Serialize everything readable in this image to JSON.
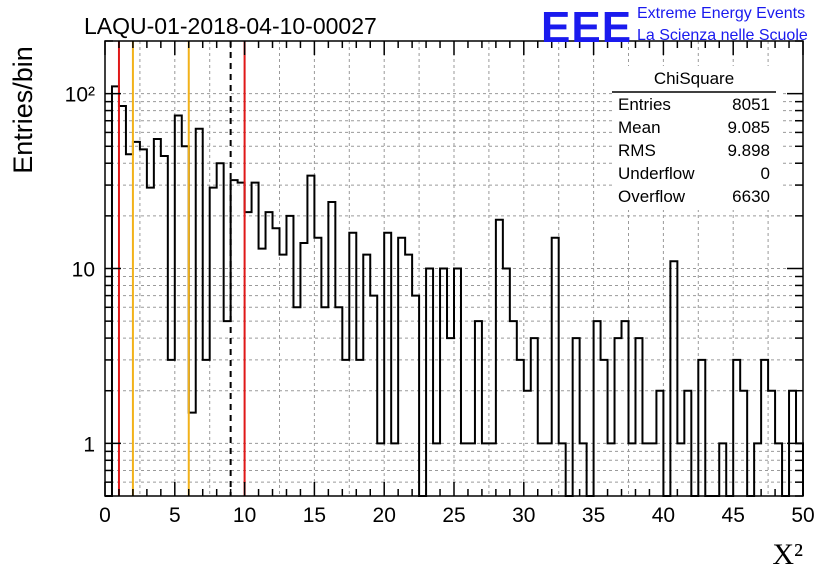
{
  "header": {
    "title": "LAQU-01-2018-04-10-00027",
    "logo_letters": "EEE",
    "logo_line1": "Extreme Energy Events",
    "logo_line2": "La Scienza nelle Scuole"
  },
  "stats": {
    "title": "ChiSquare",
    "rows": [
      {
        "label": "Entries",
        "value": "8051"
      },
      {
        "label": "Mean",
        "value": "9.085"
      },
      {
        "label": "RMS",
        "value": "9.898"
      },
      {
        "label": "Underflow",
        "value": "0"
      },
      {
        "label": "Overflow",
        "value": "6630"
      }
    ]
  },
  "chart_data": {
    "type": "histogram",
    "title": "LAQU-01-2018-04-10-00027",
    "xlabel": "X²",
    "ylabel": "Entries/bin",
    "xlim": [
      0,
      50
    ],
    "ylim": [
      0.5,
      200
    ],
    "log_y": true,
    "grid": true,
    "bin_width": 0.5,
    "x_ticks": [
      "0",
      "5",
      "10",
      "15",
      "20",
      "25",
      "30",
      "35",
      "40",
      "45",
      "50"
    ],
    "y_ticks": [
      {
        "value": 1,
        "label": "1"
      },
      {
        "value": 10,
        "label": "10"
      },
      {
        "value": 100,
        "label": "10²"
      }
    ],
    "values": [
      0,
      110,
      85,
      45,
      53,
      48,
      29,
      55,
      44,
      3,
      75,
      50,
      1.5,
      63,
      3,
      29,
      40,
      5,
      32,
      31,
      21,
      31,
      13,
      21,
      17,
      12,
      20,
      6,
      14,
      34,
      15,
      6,
      24,
      6,
      3,
      16,
      3,
      12,
      7,
      1,
      16,
      1,
      15,
      12,
      7,
      0,
      10,
      1,
      10,
      4,
      10,
      1,
      1,
      5,
      1,
      1,
      19,
      10,
      5,
      3,
      2,
      4,
      1,
      1,
      15,
      1,
      0,
      4,
      1,
      0,
      5,
      3,
      1,
      4,
      5,
      1,
      4,
      1,
      1,
      2,
      0,
      11,
      1,
      2,
      0,
      3,
      0,
      0,
      1,
      0,
      3,
      2,
      0,
      1,
      3,
      2,
      1,
      0,
      2,
      1
    ],
    "reference_lines": [
      {
        "x": 1,
        "color": "#e01818",
        "style": "solid"
      },
      {
        "x": 2,
        "color": "#f2b21a",
        "style": "solid"
      },
      {
        "x": 6,
        "color": "#f2b21a",
        "style": "solid"
      },
      {
        "x": 9,
        "color": "#000000",
        "style": "dashed"
      },
      {
        "x": 10,
        "color": "#e01818",
        "style": "solid"
      }
    ]
  }
}
